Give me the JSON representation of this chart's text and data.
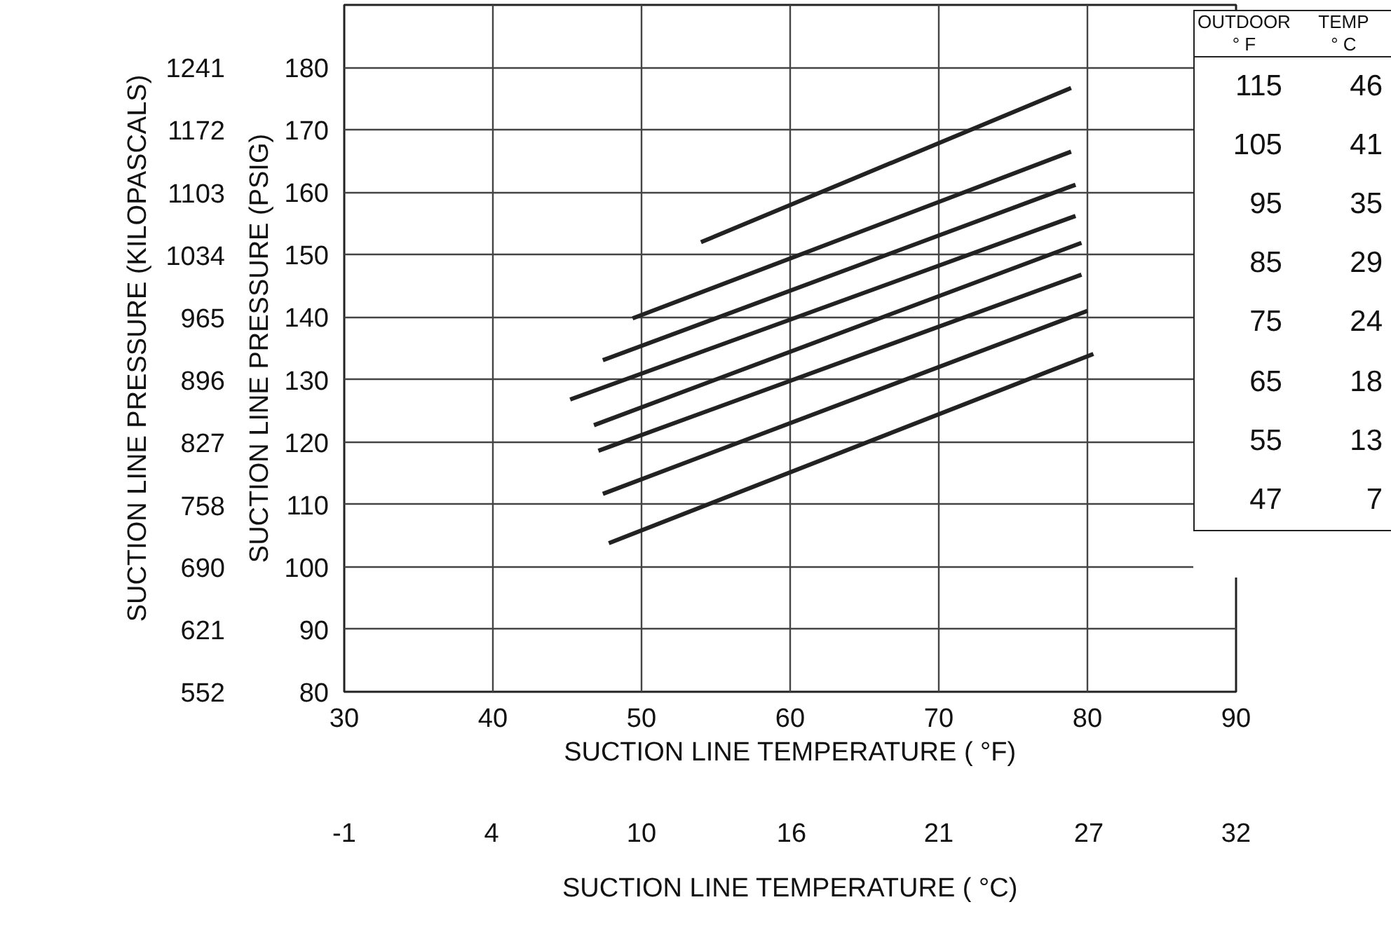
{
  "chart_data": {
    "type": "line",
    "xlabel": "SUCTION LINE TEMPERATURE ( °F)",
    "x2label": "SUCTION LINE TEMPERATURE ( °C)",
    "ylabel": "SUCTION LINE PRESSURE (PSIG)",
    "y2label": "SUCTION LINE PRESSURE (KILOPASCALS)",
    "xlim": [
      30,
      90
    ],
    "xticks": [
      30,
      40,
      50,
      60,
      70,
      80,
      90
    ],
    "x2lim": [
      -1.1,
      32.2
    ],
    "x2ticks": [
      {
        "value": -1.1,
        "label": "-1"
      },
      {
        "value": 4.4,
        "label": "4"
      },
      {
        "value": 10,
        "label": "10"
      },
      {
        "value": 15.6,
        "label": "16"
      },
      {
        "value": 21.1,
        "label": "21"
      },
      {
        "value": 26.7,
        "label": "27"
      },
      {
        "value": 32.2,
        "label": "32"
      }
    ],
    "ylim": [
      80,
      190
    ],
    "yticks": [
      80,
      90,
      100,
      110,
      120,
      130,
      140,
      150,
      160,
      170,
      180
    ],
    "y2lim": [
      552,
      1310
    ],
    "y2ticks": [
      552,
      621,
      690,
      758,
      827,
      896,
      965,
      1034,
      1103,
      1172,
      1241
    ],
    "grid": true,
    "line_style": "solid",
    "marker": "none",
    "series": [
      {
        "color": "#222222",
        "x": [
          54.0,
          78.9
        ],
        "values": [
          152.0,
          176.7
        ]
      },
      {
        "color": "#222222",
        "x": [
          49.4,
          78.9
        ],
        "values": [
          139.8,
          166.5
        ]
      },
      {
        "color": "#222222",
        "x": [
          47.4,
          79.2
        ],
        "values": [
          133.1,
          161.2
        ]
      },
      {
        "color": "#222222",
        "x": [
          45.2,
          79.2
        ],
        "values": [
          126.8,
          156.2
        ]
      },
      {
        "color": "#222222",
        "x": [
          46.8,
          79.6
        ],
        "values": [
          122.7,
          151.9
        ]
      },
      {
        "color": "#222222",
        "x": [
          47.1,
          79.6
        ],
        "values": [
          118.6,
          146.8
        ]
      },
      {
        "color": "#222222",
        "x": [
          47.4,
          80.0
        ],
        "values": [
          111.7,
          141.0
        ]
      },
      {
        "color": "#222222",
        "x": [
          47.8,
          80.4
        ],
        "values": [
          103.8,
          134.1
        ]
      }
    ],
    "annotations": [
      "OUTDOOR",
      "TEMP",
      "° F",
      "° C",
      "115",
      "46",
      "105",
      "41",
      "95",
      "35",
      "85",
      "29",
      "75",
      "24",
      "65",
      "18",
      "55",
      "13",
      "47",
      "7"
    ]
  }
}
